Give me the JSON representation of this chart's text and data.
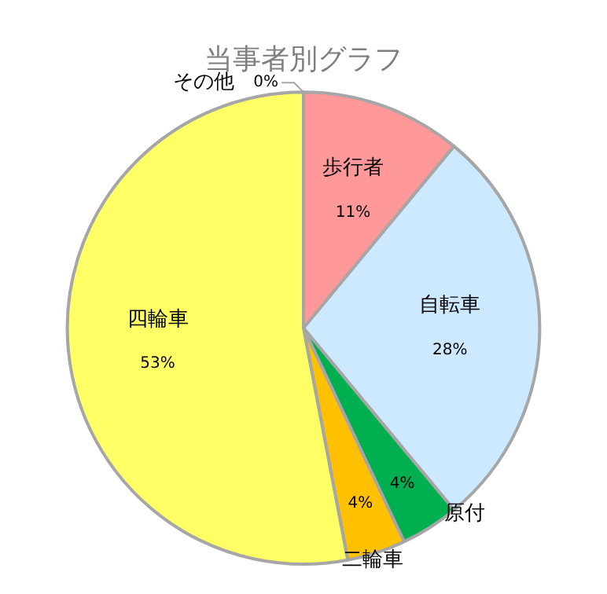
{
  "chart_data": {
    "type": "pie",
    "title": "当事者別グラフ",
    "categories": [
      "歩行者",
      "自転車",
      "原付",
      "二輪車",
      "四輪車",
      "その他"
    ],
    "values": [
      11,
      28,
      4,
      4,
      53,
      0
    ],
    "value_labels": [
      "11%",
      "28%",
      "4%",
      "4%",
      "53%",
      "0%"
    ],
    "colors": [
      "#ff9999",
      "#cce9ff",
      "#00b050",
      "#ffc000",
      "#ffff66",
      "#d9d9d9"
    ]
  }
}
